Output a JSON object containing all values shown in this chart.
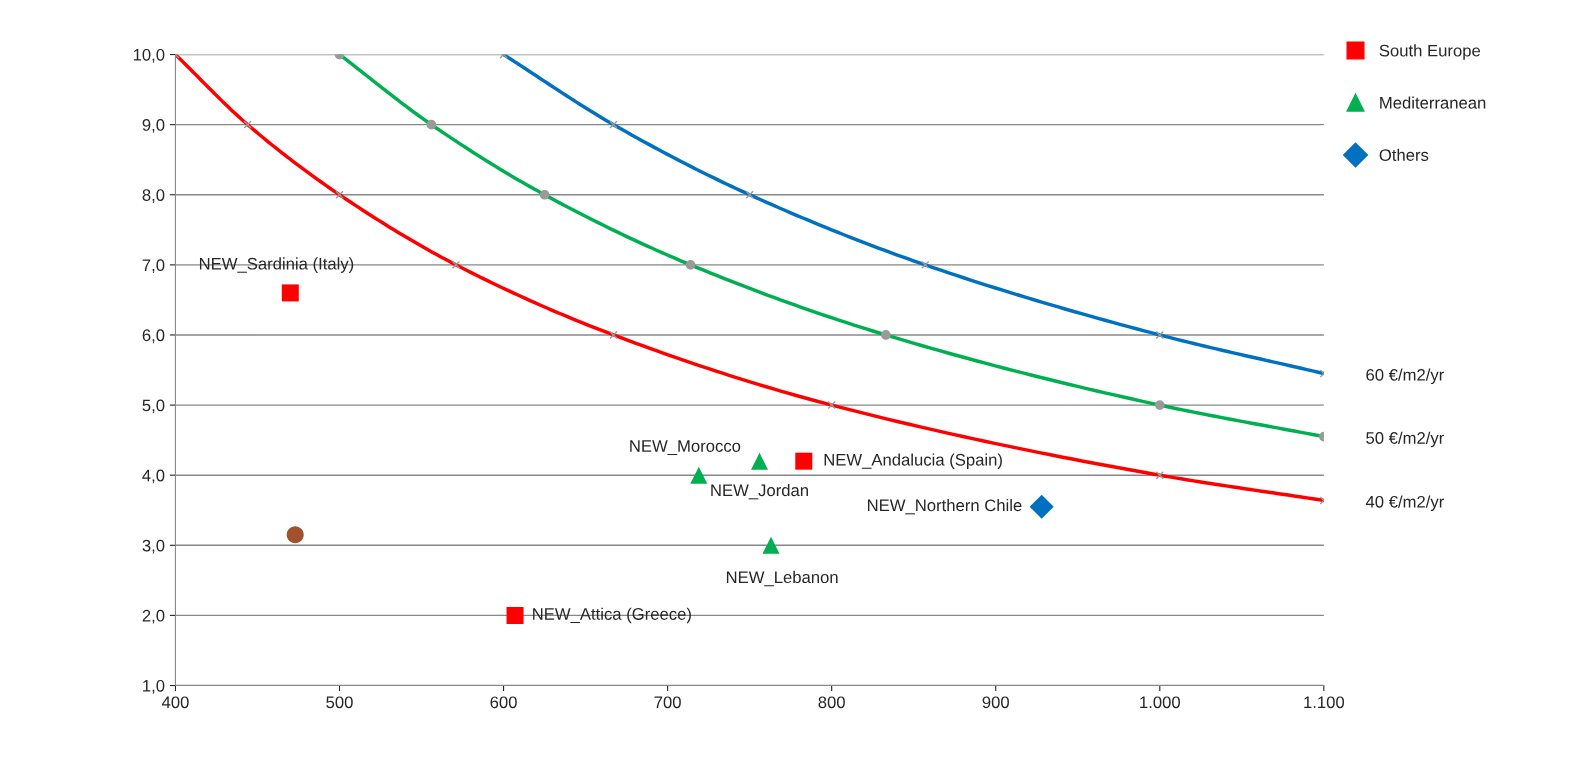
{
  "chart_data": {
    "type": "line",
    "xlim": [
      400,
      1100
    ],
    "ylim": [
      1,
      10
    ],
    "xticks": [
      400,
      500,
      600,
      700,
      800,
      900,
      {
        "value": 1000,
        "label": "1.000"
      },
      {
        "value": 1100,
        "label": "1.100"
      }
    ],
    "yticks": [
      {
        "value": 1,
        "label": "1,0"
      },
      {
        "value": 2,
        "label": "2,0"
      },
      {
        "value": 3,
        "label": "3,0"
      },
      {
        "value": 4,
        "label": "4,0"
      },
      {
        "value": 5,
        "label": "5,0"
      },
      {
        "value": 6,
        "label": "6,0"
      },
      {
        "value": 7,
        "label": "7,0"
      },
      {
        "value": 8,
        "label": "8,0"
      },
      {
        "value": 9,
        "label": "9,0"
      },
      {
        "value": 10,
        "label": "10,0"
      }
    ],
    "grid": "y",
    "legend": "top right",
    "series": [
      {
        "name": "60 €/m2/yr",
        "color": "#0070c0",
        "marker": "cross",
        "x": [
          600,
          667,
          750,
          857,
          1000,
          1100
        ],
        "values": [
          10,
          9,
          8,
          7,
          6,
          5.45
        ]
      },
      {
        "name": "50 €/m2/yr",
        "color": "#00b050",
        "marker": "circle",
        "x": [
          500,
          556,
          625,
          714,
          833,
          1000,
          1100
        ],
        "values": [
          10,
          9,
          8,
          7,
          6,
          5,
          4.55
        ]
      },
      {
        "name": "40 €/m2/yr",
        "color": "#ff0000",
        "marker": "cross",
        "x": [
          400,
          444,
          500,
          571,
          667,
          800,
          1000,
          1100
        ],
        "values": [
          10,
          9,
          8,
          7,
          6,
          5,
          4,
          3.64
        ]
      },
      {
        "name": "South Europe",
        "type": "scatter",
        "color": "#ff0000",
        "marker": "square",
        "x": [
          470,
          607,
          783
        ],
        "values": [
          6.6,
          2.0,
          4.2
        ]
      },
      {
        "name": "Mediterranean",
        "type": "scatter",
        "color": "#00b050",
        "marker": "triangle",
        "x": [
          719,
          756,
          763
        ],
        "values": [
          4.0,
          4.2,
          3.0
        ]
      },
      {
        "name": "Others",
        "type": "scatter",
        "color": "#0070c0",
        "marker": "diamond",
        "x": [
          928
        ],
        "values": [
          3.55
        ]
      },
      {
        "type": "scatter",
        "color": "#a0522d",
        "marker": "circle",
        "x": [
          473
        ],
        "values": [
          3.15
        ]
      }
    ],
    "annotations": [
      {
        "text": "NEW_Sardinia (Italy)",
        "x": 470,
        "y": 6.6
      },
      {
        "text": "NEW_Attica (Greece)",
        "x": 607,
        "y": 2.0
      },
      {
        "text": "NEW_Andalucia (Spain)",
        "x": 783,
        "y": 4.2
      },
      {
        "text": "NEW_Morocco",
        "x": 719,
        "y": 4.0
      },
      {
        "text": "NEW_Jordan",
        "x": 756,
        "y": 4.2
      },
      {
        "text": "NEW_Lebanon",
        "x": 763,
        "y": 3.0
      },
      {
        "text": "NEW_Northern Chile",
        "x": 928,
        "y": 3.55
      }
    ]
  }
}
